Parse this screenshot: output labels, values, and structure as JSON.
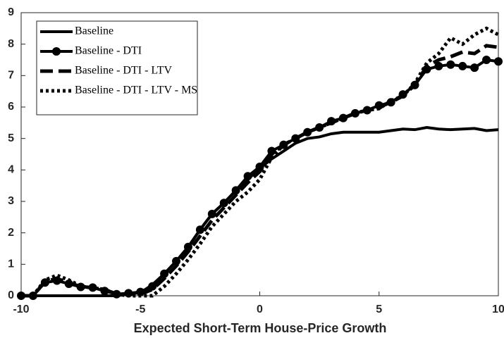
{
  "chart_data": {
    "type": "line",
    "xlabel": "Expected Short-Term House-Price Growth",
    "x": [
      -10,
      -9.5,
      -9,
      -8.5,
      -8,
      -7.5,
      -7,
      -6.5,
      -6,
      -5.5,
      -5,
      -4.5,
      -4,
      -3.5,
      -3,
      -2.5,
      -2,
      -1.5,
      -1,
      -0.5,
      0,
      0.5,
      1,
      1.5,
      2,
      2.5,
      3,
      3.5,
      4,
      4.5,
      5,
      5.5,
      6,
      6.5,
      7,
      7.5,
      8,
      8.5,
      9,
      9.5,
      10
    ],
    "series": [
      {
        "name": "Baseline",
        "color": "#000000",
        "linestyle": "solid",
        "marker": "none",
        "values": [
          0,
          0,
          0,
          0,
          0,
          0,
          0,
          0,
          0,
          0.05,
          0.1,
          0.35,
          0.7,
          1.1,
          1.55,
          2.1,
          2.6,
          2.95,
          3.35,
          3.7,
          4.05,
          4.35,
          4.6,
          4.85,
          5.0,
          5.05,
          5.15,
          5.2,
          5.2,
          5.2,
          5.2,
          5.25,
          5.3,
          5.28,
          5.35,
          5.3,
          5.28,
          5.3,
          5.32,
          5.25,
          5.28
        ]
      },
      {
        "name": "Baseline - DTI",
        "color": "#000000",
        "linestyle": "solid",
        "marker": "circle",
        "values": [
          0,
          0,
          0.42,
          0.48,
          0.38,
          0.28,
          0.26,
          0.15,
          0.05,
          0.08,
          0.12,
          0.3,
          0.7,
          1.1,
          1.55,
          2.1,
          2.6,
          2.95,
          3.35,
          3.8,
          4.1,
          4.6,
          4.8,
          5.0,
          5.2,
          5.35,
          5.55,
          5.65,
          5.8,
          5.9,
          6.05,
          6.15,
          6.4,
          6.7,
          7.2,
          7.3,
          7.35,
          7.3,
          7.25,
          7.5,
          7.45
        ]
      },
      {
        "name": "Baseline - DTI - LTV",
        "color": "#000000",
        "linestyle": "dashed",
        "marker": "none",
        "values": [
          0,
          0,
          0.45,
          0.55,
          0.4,
          0.3,
          0.25,
          0.2,
          0.05,
          0.05,
          0.05,
          0.2,
          0.55,
          0.95,
          1.4,
          1.9,
          2.4,
          2.8,
          3.2,
          3.6,
          3.95,
          4.5,
          4.8,
          5.0,
          5.2,
          5.35,
          5.5,
          5.65,
          5.8,
          5.9,
          6.0,
          6.15,
          6.35,
          6.7,
          7.3,
          7.5,
          7.6,
          7.75,
          7.7,
          7.95,
          7.9
        ]
      },
      {
        "name": "Baseline - DTI - LTV - MS",
        "color": "#000000",
        "linestyle": "dotted",
        "marker": "none",
        "values": [
          0,
          0,
          0.5,
          0.65,
          0.5,
          0.3,
          0.25,
          0.2,
          0.05,
          0,
          0,
          0,
          0.3,
          0.7,
          1.15,
          1.65,
          2.2,
          2.6,
          3.0,
          3.3,
          3.7,
          4.4,
          4.8,
          5.0,
          5.2,
          5.35,
          5.5,
          5.65,
          5.8,
          5.9,
          5.95,
          6.2,
          6.35,
          6.75,
          7.4,
          7.7,
          8.2,
          8.0,
          8.3,
          8.5,
          8.3
        ]
      }
    ],
    "xlim": [
      -10,
      10
    ],
    "xticks": [
      -10,
      -5,
      0,
      5,
      10
    ],
    "ylim": [
      0,
      9
    ],
    "yticks": [
      0,
      1,
      2,
      3,
      4,
      5,
      6,
      7,
      8,
      9
    ],
    "legend": "upper left",
    "grid": false
  }
}
